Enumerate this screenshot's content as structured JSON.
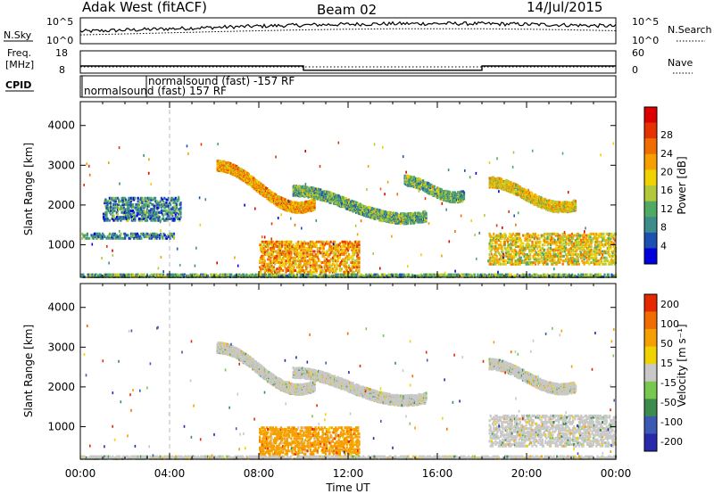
{
  "header": {
    "station": "Adak West (fitACF)",
    "beam": "Beam 02",
    "date": "14/Jul/2015"
  },
  "chart_data": [
    {
      "type": "line",
      "panel": "noise",
      "left_label": "N.Sky",
      "right_label": "N.Search",
      "left_ticks": [
        "10^5",
        "10^0"
      ],
      "right_ticks": [
        "10^5",
        "10^0"
      ]
    },
    {
      "type": "line",
      "panel": "frequency",
      "left_label_1": "Freq.",
      "left_label_2": "[MHz]",
      "right_label": "Nave",
      "left_ticks": [
        "18",
        "8"
      ],
      "right_ticks": [
        "60",
        "0"
      ],
      "freq_series": [
        {
          "x": 0.0,
          "y": 11.2
        },
        {
          "x": 10.0,
          "y": 11.2
        },
        {
          "x": 10.0,
          "y": 9.3
        },
        {
          "x": 18.0,
          "y": 9.3
        },
        {
          "x": 18.0,
          "y": 11.2
        },
        {
          "x": 24.0,
          "y": 11.2
        }
      ]
    },
    {
      "type": "table",
      "panel": "cpid",
      "label": "CPID",
      "entries": [
        {
          "start_hour": 0.0,
          "text": "normalsound (fast) 157 RF"
        },
        {
          "start_hour": 4.0,
          "text": "normalsound (fast) -157 RF"
        }
      ]
    },
    {
      "type": "heatmap",
      "panel": "power",
      "ylabel": "Slant Range [km]",
      "ylim": [
        180,
        4600
      ],
      "yticks": [
        1000,
        2000,
        3000,
        4000
      ],
      "xlim": [
        0,
        24
      ],
      "colorbar_label": "Power [dB]",
      "colorbar_ticks": [
        "4",
        "8",
        "12",
        "16",
        "20",
        "24",
        "28"
      ],
      "colorbar_colors": [
        "#0000dd",
        "#1e50b4",
        "#3c8c8c",
        "#50aa64",
        "#b4c83c",
        "#f0d200",
        "#f5a000",
        "#f06e00",
        "#e63200",
        "#dc0000"
      ],
      "regions": [
        {
          "name": "ground-scatter",
          "x": [
            0,
            24
          ],
          "y": [
            180,
            260
          ],
          "level": 3
        },
        {
          "name": "lower-band",
          "x": [
            0,
            4.2
          ],
          "y": [
            1150,
            1300
          ],
          "level": 2
        },
        {
          "name": "ramp-early",
          "x": [
            1,
            4.5
          ],
          "y": [
            1600,
            2200
          ],
          "level": 2
        },
        {
          "name": "morning-arc",
          "x": [
            6.1,
            10.5
          ],
          "y": [
            1700,
            3200
          ],
          "level": 6
        },
        {
          "name": "midday-wave",
          "x": [
            9.5,
            15.5
          ],
          "y": [
            1500,
            2500
          ],
          "level": 3
        },
        {
          "name": "afternoon-wave",
          "x": [
            14.5,
            17.2
          ],
          "y": [
            2100,
            2700
          ],
          "level": 3
        },
        {
          "name": "noon-near",
          "x": [
            8,
            12.5
          ],
          "y": [
            300,
            1100
          ],
          "level": 6
        },
        {
          "name": "evening-arc",
          "x": [
            18.3,
            22.2
          ],
          "y": [
            1800,
            2700
          ],
          "level": 5
        },
        {
          "name": "evening-near",
          "x": [
            18.3,
            24
          ],
          "y": [
            500,
            1300
          ],
          "level": 5
        }
      ]
    },
    {
      "type": "heatmap",
      "panel": "velocity",
      "ylabel": "Slant Range [km]",
      "ylim": [
        180,
        4600
      ],
      "yticks": [
        1000,
        2000,
        3000,
        4000
      ],
      "xlim": [
        0,
        24
      ],
      "xlabel": "Time UT",
      "xticks": [
        "00:00",
        "04:00",
        "08:00",
        "12:00",
        "16:00",
        "20:00",
        "00:00"
      ],
      "colorbar_label": "Velocity [m s⁻¹]",
      "colorbar_ticks": [
        "200",
        "100",
        "50",
        "15",
        "-15",
        "-50",
        "-100",
        "-200"
      ],
      "colorbar_colors": [
        "#2828aa",
        "#3c5ab4",
        "#3c8c50",
        "#78c850",
        "#c8c8c8",
        "#f0d200",
        "#f5a000",
        "#f06e00",
        "#e62800"
      ],
      "regions": [
        {
          "name": "ground-scatter",
          "x": [
            0,
            24
          ],
          "y": [
            180,
            260
          ],
          "level": 4
        },
        {
          "name": "morning-arc",
          "x": [
            6.1,
            10.5
          ],
          "y": [
            1700,
            3200
          ],
          "level": 4
        },
        {
          "name": "midday-wave",
          "x": [
            9.5,
            15.5
          ],
          "y": [
            1500,
            2500
          ],
          "level": 4
        },
        {
          "name": "noon-near",
          "x": [
            8,
            12.5
          ],
          "y": [
            300,
            1000
          ],
          "level": 6
        },
        {
          "name": "evening-arc",
          "x": [
            18.3,
            22.2
          ],
          "y": [
            1800,
            2700
          ],
          "level": 4
        },
        {
          "name": "evening-near",
          "x": [
            18.3,
            24
          ],
          "y": [
            500,
            1300
          ],
          "level": 4
        }
      ]
    }
  ]
}
